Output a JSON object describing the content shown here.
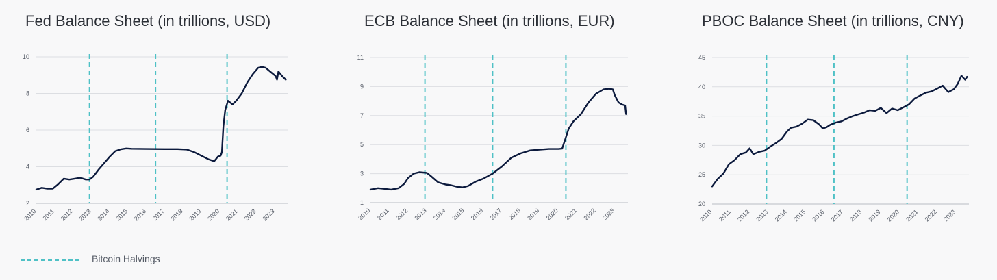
{
  "chart_data": [
    {
      "type": "line",
      "title": "Fed Balance Sheet (in trillions, USD)",
      "ylim": [
        2,
        10
      ],
      "yticks": [
        2,
        4,
        6,
        8,
        10
      ],
      "xlim": [
        2010,
        2023.7
      ],
      "xticks": [
        "2010",
        "2011",
        "2012",
        "2013",
        "2014",
        "2015",
        "2016",
        "2017",
        "2018",
        "2019",
        "2020",
        "2021",
        "2022",
        "2023"
      ],
      "grid": true,
      "halvings": [
        2012.9,
        2016.5,
        2020.4
      ],
      "series": [
        {
          "color": "#0c1a3d",
          "x": [
            2010,
            2010.3,
            2010.6,
            2010.9,
            2011.2,
            2011.5,
            2011.8,
            2012.1,
            2012.4,
            2012.7,
            2012.9,
            2013.1,
            2013.4,
            2013.7,
            2014,
            2014.3,
            2014.6,
            2014.9,
            2015.2,
            2016,
            2017,
            2017.7,
            2018.2,
            2018.6,
            2019,
            2019.4,
            2019.7,
            2019.9,
            2020.05,
            2020.12,
            2020.2,
            2020.3,
            2020.45,
            2020.7,
            2020.9,
            2021.2,
            2021.5,
            2021.8,
            2022.1,
            2022.3,
            2022.5,
            2022.8,
            2023.05,
            2023.12,
            2023.2,
            2023.4,
            2023.6
          ],
          "y": [
            2.75,
            2.85,
            2.8,
            2.8,
            3.05,
            3.35,
            3.3,
            3.35,
            3.4,
            3.3,
            3.3,
            3.45,
            3.85,
            4.2,
            4.55,
            4.85,
            4.95,
            5.0,
            4.98,
            4.97,
            4.96,
            4.96,
            4.94,
            4.8,
            4.6,
            4.4,
            4.3,
            4.55,
            4.6,
            4.8,
            6.2,
            7.1,
            7.6,
            7.4,
            7.6,
            8.0,
            8.6,
            9.05,
            9.4,
            9.45,
            9.4,
            9.15,
            8.95,
            8.75,
            9.2,
            8.95,
            8.75
          ]
        }
      ]
    },
    {
      "type": "line",
      "title": "ECB Balance Sheet (in trillions, EUR)",
      "ylim": [
        1,
        11
      ],
      "yticks": [
        1,
        3,
        5,
        7,
        9,
        11
      ],
      "xlim": [
        2010,
        2023.7
      ],
      "xticks": [
        "2010",
        "2011",
        "2012",
        "2013",
        "2014",
        "2015",
        "2016",
        "2017",
        "2018",
        "2019",
        "2020",
        "2021",
        "2022",
        "2023"
      ],
      "grid": true,
      "halvings": [
        2012.9,
        2016.5,
        2020.4
      ],
      "series": [
        {
          "color": "#0c1a3d",
          "x": [
            2010,
            2010.4,
            2010.8,
            2011.1,
            2011.5,
            2011.8,
            2012,
            2012.3,
            2012.6,
            2013,
            2013.2,
            2013.6,
            2014,
            2014.3,
            2014.6,
            2014.9,
            2015.2,
            2015.6,
            2016,
            2016.5,
            2017,
            2017.5,
            2018,
            2018.5,
            2019,
            2019.5,
            2020,
            2020.2,
            2020.4,
            2020.55,
            2020.8,
            2021.2,
            2021.6,
            2022,
            2022.4,
            2022.7,
            2022.9,
            2023,
            2023.2,
            2023.4,
            2023.55,
            2023.6
          ],
          "y": [
            1.9,
            2.0,
            1.95,
            1.9,
            2.0,
            2.3,
            2.7,
            3.0,
            3.1,
            3.05,
            2.85,
            2.4,
            2.25,
            2.2,
            2.1,
            2.05,
            2.15,
            2.45,
            2.65,
            3.0,
            3.5,
            4.1,
            4.4,
            4.6,
            4.65,
            4.7,
            4.7,
            4.72,
            5.5,
            6.1,
            6.6,
            7.1,
            7.9,
            8.5,
            8.8,
            8.85,
            8.8,
            8.4,
            7.9,
            7.75,
            7.7,
            7.1
          ]
        }
      ]
    },
    {
      "type": "line",
      "title": "PBOC Balance Sheet (in trillions, CNY)",
      "ylim": [
        20,
        45
      ],
      "yticks": [
        20,
        25,
        30,
        35,
        40,
        45
      ],
      "xlim": [
        2010,
        2023.7
      ],
      "xticks": [
        "2010",
        "2011",
        "2012",
        "2013",
        "2014",
        "2015",
        "2016",
        "2017",
        "2018",
        "2019",
        "2020",
        "2021",
        "2022",
        "2023"
      ],
      "grid": true,
      "halvings": [
        2012.9,
        2016.5,
        2020.4
      ],
      "series": [
        {
          "color": "#0c1a3d",
          "x": [
            2010,
            2010.3,
            2010.6,
            2010.9,
            2011.2,
            2011.5,
            2011.8,
            2012,
            2012.2,
            2012.5,
            2012.8,
            2013.1,
            2013.4,
            2013.7,
            2014,
            2014.2,
            2014.5,
            2014.8,
            2015.1,
            2015.4,
            2015.7,
            2015.9,
            2016.1,
            2016.3,
            2016.6,
            2016.9,
            2017.2,
            2017.5,
            2017.8,
            2018.1,
            2018.4,
            2018.7,
            2019,
            2019.3,
            2019.6,
            2019.9,
            2020.2,
            2020.5,
            2020.8,
            2021.1,
            2021.4,
            2021.7,
            2022,
            2022.3,
            2022.6,
            2022.9,
            2023.1,
            2023.3,
            2023.5,
            2023.6
          ],
          "y": [
            23,
            24.3,
            25.2,
            26.8,
            27.5,
            28.5,
            28.8,
            29.5,
            28.5,
            28.9,
            29.1,
            29.8,
            30.4,
            31.1,
            32.4,
            33.0,
            33.2,
            33.7,
            34.4,
            34.3,
            33.6,
            32.9,
            33.1,
            33.5,
            33.9,
            34.1,
            34.6,
            35.0,
            35.3,
            35.6,
            36.0,
            35.9,
            36.4,
            35.5,
            36.3,
            36.0,
            36.5,
            37.0,
            38.0,
            38.5,
            39.0,
            39.2,
            39.7,
            40.2,
            39.1,
            39.6,
            40.5,
            41.9,
            41.2,
            41.7
          ]
        }
      ]
    }
  ],
  "legend": {
    "label": "Bitcoin Halvings",
    "color": "#4fc1c6"
  }
}
